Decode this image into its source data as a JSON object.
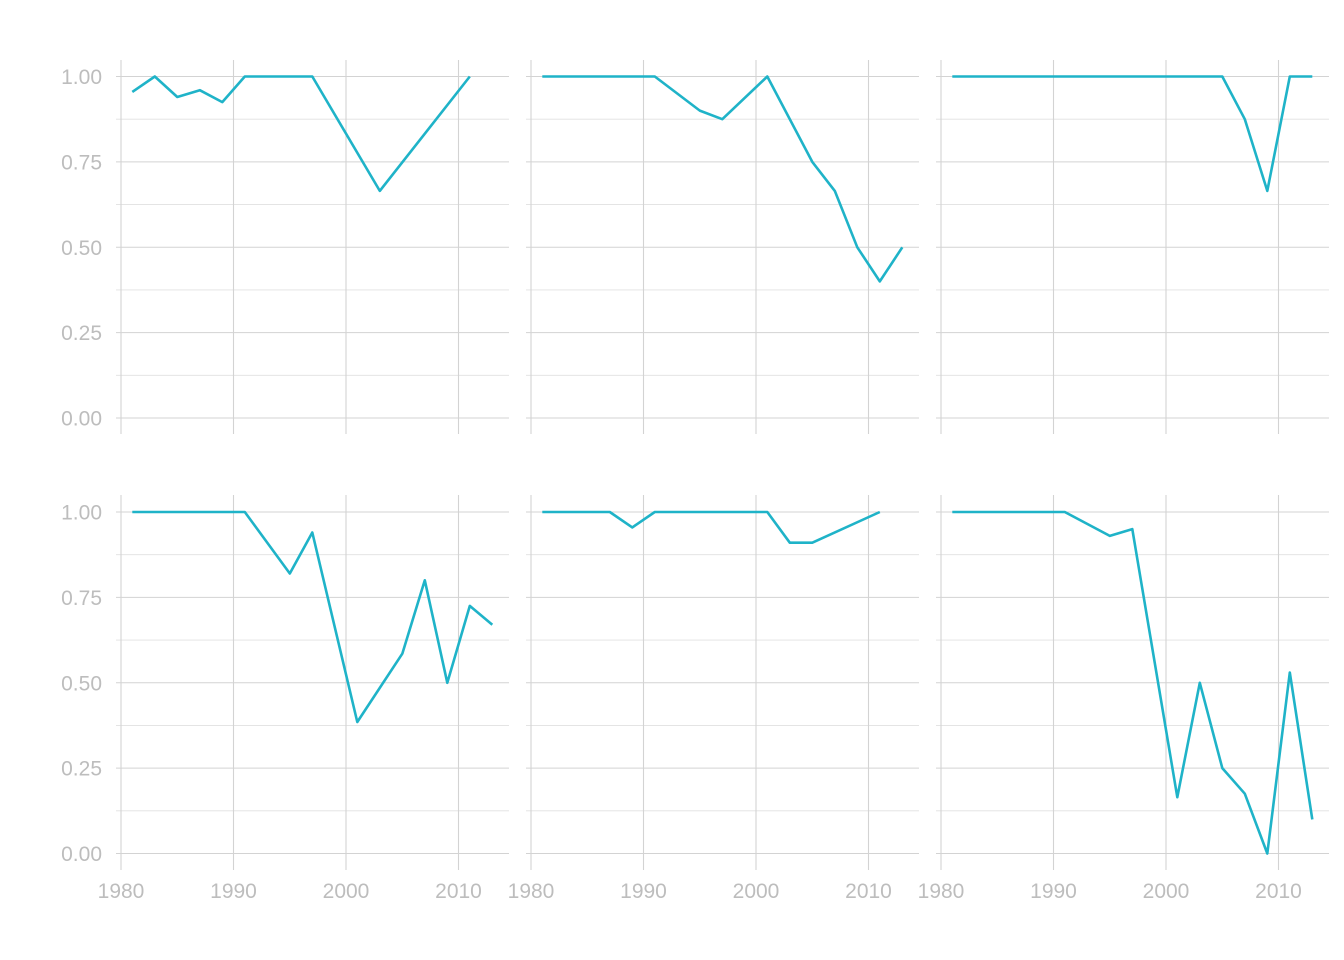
{
  "chart_data": {
    "type": "line",
    "layout": "facet grid 2 rows x 3 columns",
    "title": "",
    "xlabel": "",
    "ylabel": "",
    "xlim": [
      1980,
      2014
    ],
    "ylim": [
      0,
      1.05
    ],
    "x_ticks": [
      1980,
      1990,
      2000,
      2010
    ],
    "y_ticks": [
      0.0,
      0.25,
      0.5,
      0.75,
      1.0
    ],
    "y_tick_labels": [
      "0.00",
      "0.25",
      "0.50",
      "0.75",
      "1.00"
    ],
    "x_tick_labels": [
      "1980",
      "1990",
      "2000",
      "2010"
    ],
    "grid": true,
    "legend": "none",
    "line_color": "#1fb3c8",
    "panels": [
      {
        "x": [
          1981,
          1983,
          1985,
          1987,
          1989,
          1991,
          1997,
          2003,
          2011
        ],
        "y": [
          0.955,
          1.0,
          0.94,
          0.96,
          0.925,
          1.0,
          1.0,
          0.665,
          1.0
        ]
      },
      {
        "x": [
          1981,
          1991,
          1995,
          1997,
          2001,
          2005,
          2007,
          2009,
          2011,
          2013
        ],
        "y": [
          1.0,
          1.0,
          0.9,
          0.875,
          1.0,
          0.75,
          0.665,
          0.5,
          0.4,
          0.5
        ]
      },
      {
        "x": [
          1981,
          2005,
          2007,
          2009,
          2011,
          2013
        ],
        "y": [
          1.0,
          1.0,
          0.875,
          0.665,
          1.0,
          1.0
        ]
      },
      {
        "x": [
          1981,
          1991,
          1995,
          1997,
          2001,
          2005,
          2007,
          2009,
          2011,
          2013
        ],
        "y": [
          1.0,
          1.0,
          0.82,
          0.94,
          0.385,
          0.585,
          0.8,
          0.5,
          0.725,
          0.67
        ]
      },
      {
        "x": [
          1981,
          1987,
          1989,
          1991,
          2001,
          2003,
          2005,
          2011
        ],
        "y": [
          1.0,
          1.0,
          0.955,
          1.0,
          1.0,
          0.91,
          0.91,
          1.0
        ]
      },
      {
        "x": [
          1981,
          1991,
          1995,
          1997,
          2001,
          2003,
          2005,
          2007,
          2009,
          2011,
          2013
        ],
        "y": [
          1.0,
          1.0,
          0.93,
          0.95,
          0.165,
          0.5,
          0.25,
          0.175,
          0.0,
          0.53,
          0.1
        ]
      }
    ]
  }
}
